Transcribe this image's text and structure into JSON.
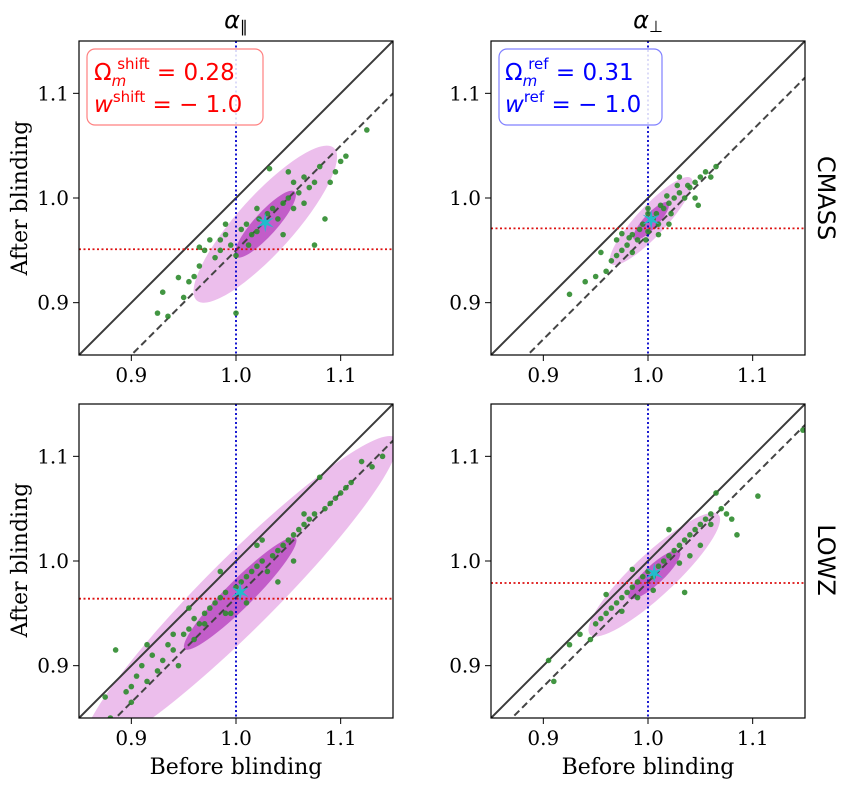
{
  "figure": {
    "col_titles": [
      {
        "base": "α",
        "sub": "∥"
      },
      {
        "base": "α",
        "sub": "⊥"
      }
    ],
    "row_labels": [
      "CMASS",
      "LOWZ"
    ],
    "xlabel": "Before blinding",
    "ylabel": "After blinding",
    "annotations": [
      {
        "color": "#ff0000",
        "line1": {
          "base": "Ω",
          "sub": "m",
          "sup": "shift",
          "rest": " = 0.28"
        },
        "line2": {
          "base": "w",
          "sup": "shift",
          "rest": " = − 1.0"
        }
      },
      {
        "color": "#0000ff",
        "line1": {
          "base": "Ω",
          "sub": "m",
          "sup": "ref",
          "rest": " = 0.31"
        },
        "line2": {
          "base": "w",
          "sup": "ref",
          "rest": " = − 1.0"
        }
      }
    ]
  },
  "chart_data": [
    {
      "type": "scatter",
      "panel": "CMASS alpha_parallel",
      "xlim": [
        0.85,
        1.15
      ],
      "ylim": [
        0.85,
        1.15
      ],
      "xticks": [
        "0.9",
        "1.0",
        "1.1"
      ],
      "yticks": [
        "0.9",
        "1.0",
        "1.1"
      ],
      "ref_x": 1.0,
      "ref_y": 0.951,
      "dashed_line": {
        "slope": 1.0,
        "intercept": -0.05
      },
      "center": [
        1.028,
        0.975
      ],
      "ellipse": {
        "angle_deg": 48,
        "a1": 0.042,
        "b1": 0.011,
        "a2": 0.098,
        "b2": 0.027
      },
      "points": [
        [
          0.925,
          0.89
        ],
        [
          0.935,
          0.887
        ],
        [
          0.93,
          0.91
        ],
        [
          0.95,
          0.905
        ],
        [
          0.96,
          0.925
        ],
        [
          0.965,
          0.935
        ],
        [
          0.97,
          0.95
        ],
        [
          0.98,
          0.943
        ],
        [
          0.985,
          0.96
        ],
        [
          0.99,
          0.965
        ],
        [
          0.995,
          0.955
        ],
        [
          1.0,
          0.945
        ],
        [
          1.005,
          0.97
        ],
        [
          1.01,
          0.975
        ],
        [
          1.015,
          0.965
        ],
        [
          1.02,
          0.968
        ],
        [
          1.022,
          0.98
        ],
        [
          1.03,
          0.985
        ],
        [
          1.035,
          0.99
        ],
        [
          1.04,
          0.98
        ],
        [
          1.045,
          0.995
        ],
        [
          1.05,
          1.0
        ],
        [
          1.055,
          0.99
        ],
        [
          1.06,
          1.005
        ],
        [
          1.065,
          1.02
        ],
        [
          1.07,
          1.01
        ],
        [
          1.075,
          1.015
        ],
        [
          1.08,
          1.03
        ],
        [
          1.085,
          0.98
        ],
        [
          1.09,
          1.015
        ],
        [
          1.095,
          1.025
        ],
        [
          1.1,
          1.035
        ],
        [
          1.105,
          1.04
        ],
        [
          1.125,
          1.065
        ],
        [
          1.032,
          1.028
        ],
        [
          0.975,
          0.96
        ],
        [
          1.0,
          0.89
        ],
        [
          0.955,
          0.92
        ],
        [
          0.99,
          0.975
        ],
        [
          1.012,
          0.955
        ],
        [
          1.045,
          0.965
        ],
        [
          1.055,
          1.015
        ],
        [
          1.065,
          0.995
        ],
        [
          1.075,
          0.955
        ],
        [
          0.965,
          0.953
        ],
        [
          0.945,
          0.924
        ],
        [
          0.985,
          0.95
        ],
        [
          1.02,
          0.99
        ],
        [
          1.05,
          1.025
        ]
      ]
    },
    {
      "type": "scatter",
      "panel": "CMASS alpha_perp",
      "xlim": [
        0.85,
        1.15
      ],
      "ylim": [
        0.85,
        1.15
      ],
      "xticks": [
        "0.9",
        "1.0",
        "1.1"
      ],
      "yticks": [
        "0.9",
        "1.0",
        "1.1"
      ],
      "ref_x": 1.0,
      "ref_y": 0.971,
      "dashed_line": {
        "slope": 1.0,
        "intercept": -0.035
      },
      "center": [
        1.003,
        0.978
      ],
      "ellipse": {
        "angle_deg": 47,
        "a1": 0.024,
        "b1": 0.007,
        "a2": 0.056,
        "b2": 0.014
      },
      "points": [
        [
          0.925,
          0.908
        ],
        [
          0.94,
          0.92
        ],
        [
          0.95,
          0.925
        ],
        [
          0.96,
          0.93
        ],
        [
          0.965,
          0.94
        ],
        [
          0.97,
          0.945
        ],
        [
          0.975,
          0.95
        ],
        [
          0.98,
          0.955
        ],
        [
          0.982,
          0.962
        ],
        [
          0.985,
          0.965
        ],
        [
          0.99,
          0.96
        ],
        [
          0.992,
          0.97
        ],
        [
          0.995,
          0.975
        ],
        [
          1.0,
          0.968
        ],
        [
          1.005,
          0.98
        ],
        [
          1.008,
          0.985
        ],
        [
          1.01,
          0.975
        ],
        [
          1.015,
          0.99
        ],
        [
          1.02,
          0.995
        ],
        [
          1.022,
          0.985
        ],
        [
          1.025,
          1.0
        ],
        [
          1.03,
          1.005
        ],
        [
          1.035,
          1.0
        ],
        [
          1.04,
          1.01
        ],
        [
          1.045,
          1.015
        ],
        [
          1.05,
          1.02
        ],
        [
          1.055,
          1.025
        ],
        [
          1.06,
          1.02
        ],
        [
          1.065,
          1.03
        ],
        [
          1.045,
          1.0
        ],
        [
          1.03,
          1.02
        ],
        [
          1.02,
          0.975
        ],
        [
          0.97,
          0.96
        ],
        [
          0.985,
          0.948
        ],
        [
          1.0,
          0.985
        ],
        [
          1.012,
          0.993
        ],
        [
          1.038,
          1.012
        ],
        [
          1.048,
          0.993
        ],
        [
          0.955,
          0.948
        ],
        [
          0.998,
          0.96
        ],
        [
          1.018,
          1.002
        ],
        [
          1.028,
          1.012
        ],
        [
          0.975,
          0.966
        ],
        [
          1.0,
          0.99
        ],
        [
          1.01,
          0.965
        ]
      ]
    },
    {
      "type": "scatter",
      "panel": "LOWZ alpha_parallel",
      "xlim": [
        0.85,
        1.15
      ],
      "ylim": [
        0.85,
        1.15
      ],
      "xticks": [
        "0.9",
        "1.0",
        "1.1"
      ],
      "yticks": [
        "0.9",
        "1.0",
        "1.1"
      ],
      "ref_x": 1.0,
      "ref_y": 0.964,
      "dashed_line": {
        "slope": 1.0,
        "intercept": -0.035
      },
      "center": [
        1.004,
        0.969
      ],
      "ellipse": {
        "angle_deg": 45,
        "a1": 0.075,
        "b1": 0.013,
        "a2": 0.21,
        "b2": 0.034
      },
      "points": [
        [
          0.875,
          0.87
        ],
        [
          0.88,
          0.85
        ],
        [
          0.885,
          0.915
        ],
        [
          0.895,
          0.875
        ],
        [
          0.9,
          0.88
        ],
        [
          0.905,
          0.89
        ],
        [
          0.91,
          0.9
        ],
        [
          0.915,
          0.885
        ],
        [
          0.92,
          0.91
        ],
        [
          0.925,
          0.895
        ],
        [
          0.93,
          0.905
        ],
        [
          0.935,
          0.92
        ],
        [
          0.94,
          0.915
        ],
        [
          0.945,
          0.9
        ],
        [
          0.95,
          0.93
        ],
        [
          0.955,
          0.935
        ],
        [
          0.96,
          0.945
        ],
        [
          0.965,
          0.94
        ],
        [
          0.97,
          0.95
        ],
        [
          0.975,
          0.955
        ],
        [
          0.98,
          0.96
        ],
        [
          0.985,
          0.965
        ],
        [
          0.99,
          0.97
        ],
        [
          0.995,
          0.95
        ],
        [
          1.0,
          0.975
        ],
        [
          1.005,
          0.98
        ],
        [
          1.01,
          0.985
        ],
        [
          1.015,
          0.99
        ],
        [
          1.02,
          0.995
        ],
        [
          1.025,
          1.0
        ],
        [
          1.03,
          0.99
        ],
        [
          1.035,
          1.005
        ],
        [
          1.04,
          1.01
        ],
        [
          1.045,
          1.015
        ],
        [
          1.05,
          1.02
        ],
        [
          1.055,
          1.025
        ],
        [
          1.06,
          1.03
        ],
        [
          1.065,
          1.035
        ],
        [
          1.07,
          1.04
        ],
        [
          1.075,
          1.045
        ],
        [
          1.08,
          1.08
        ],
        [
          1.085,
          1.05
        ],
        [
          1.09,
          1.055
        ],
        [
          1.095,
          1.06
        ],
        [
          1.1,
          1.065
        ],
        [
          1.105,
          1.07
        ],
        [
          1.11,
          1.075
        ],
        [
          1.12,
          1.095
        ],
        [
          1.13,
          1.09
        ],
        [
          1.14,
          1.1
        ],
        [
          0.955,
          0.955
        ],
        [
          0.97,
          0.94
        ],
        [
          0.99,
          0.95
        ],
        [
          1.01,
          0.96
        ],
        [
          1.02,
          1.015
        ],
        [
          1.04,
          0.98
        ],
        [
          1.055,
          1.0
        ],
        [
          1.065,
          1.045
        ],
        [
          0.94,
          0.93
        ],
        [
          0.915,
          0.92
        ],
        [
          0.985,
          0.99
        ],
        [
          1.025,
          1.02
        ],
        [
          0.96,
          0.925
        ],
        [
          0.9,
          0.865
        ]
      ]
    },
    {
      "type": "scatter",
      "panel": "LOWZ alpha_perp",
      "xlim": [
        0.85,
        1.15
      ],
      "ylim": [
        0.85,
        1.15
      ],
      "xticks": [
        "0.9",
        "1.0",
        "1.1"
      ],
      "yticks": [
        "0.9",
        "1.0",
        "1.1"
      ],
      "ref_x": 1.0,
      "ref_y": 0.979,
      "dashed_line": {
        "slope": 1.0,
        "intercept": -0.02
      },
      "center": [
        1.006,
        0.987
      ],
      "ellipse": {
        "angle_deg": 43,
        "a1": 0.033,
        "b1": 0.009,
        "a2": 0.084,
        "b2": 0.02
      },
      "points": [
        [
          0.905,
          0.905
        ],
        [
          0.91,
          0.885
        ],
        [
          0.925,
          0.92
        ],
        [
          0.935,
          0.93
        ],
        [
          0.945,
          0.925
        ],
        [
          0.95,
          0.94
        ],
        [
          0.955,
          0.945
        ],
        [
          0.96,
          0.95
        ],
        [
          0.965,
          0.955
        ],
        [
          0.97,
          0.96
        ],
        [
          0.975,
          0.965
        ],
        [
          0.98,
          0.97
        ],
        [
          0.985,
          0.975
        ],
        [
          0.99,
          0.98
        ],
        [
          0.995,
          0.985
        ],
        [
          1.0,
          0.99
        ],
        [
          1.005,
          0.985
        ],
        [
          1.01,
          0.995
        ],
        [
          1.015,
          1.0
        ],
        [
          1.02,
          1.005
        ],
        [
          1.025,
          1.01
        ],
        [
          1.03,
          1.015
        ],
        [
          1.035,
          1.02
        ],
        [
          1.04,
          1.025
        ],
        [
          1.045,
          1.03
        ],
        [
          1.05,
          1.035
        ],
        [
          1.055,
          1.04
        ],
        [
          1.06,
          1.045
        ],
        [
          1.065,
          1.065
        ],
        [
          1.07,
          1.05
        ],
        [
          1.075,
          1.045
        ],
        [
          1.08,
          1.04
        ],
        [
          1.085,
          1.025
        ],
        [
          1.105,
          1.062
        ],
        [
          1.148,
          1.125
        ],
        [
          1.035,
          0.97
        ],
        [
          1.005,
          0.972
        ],
        [
          0.99,
          0.965
        ],
        [
          0.96,
          0.968
        ],
        [
          1.02,
          1.03
        ],
        [
          1.04,
          1.005
        ],
        [
          1.05,
          1.015
        ],
        [
          0.975,
          0.952
        ],
        [
          0.985,
          0.992
        ],
        [
          1.03,
          0.998
        ],
        [
          1.06,
          1.035
        ]
      ]
    }
  ]
}
